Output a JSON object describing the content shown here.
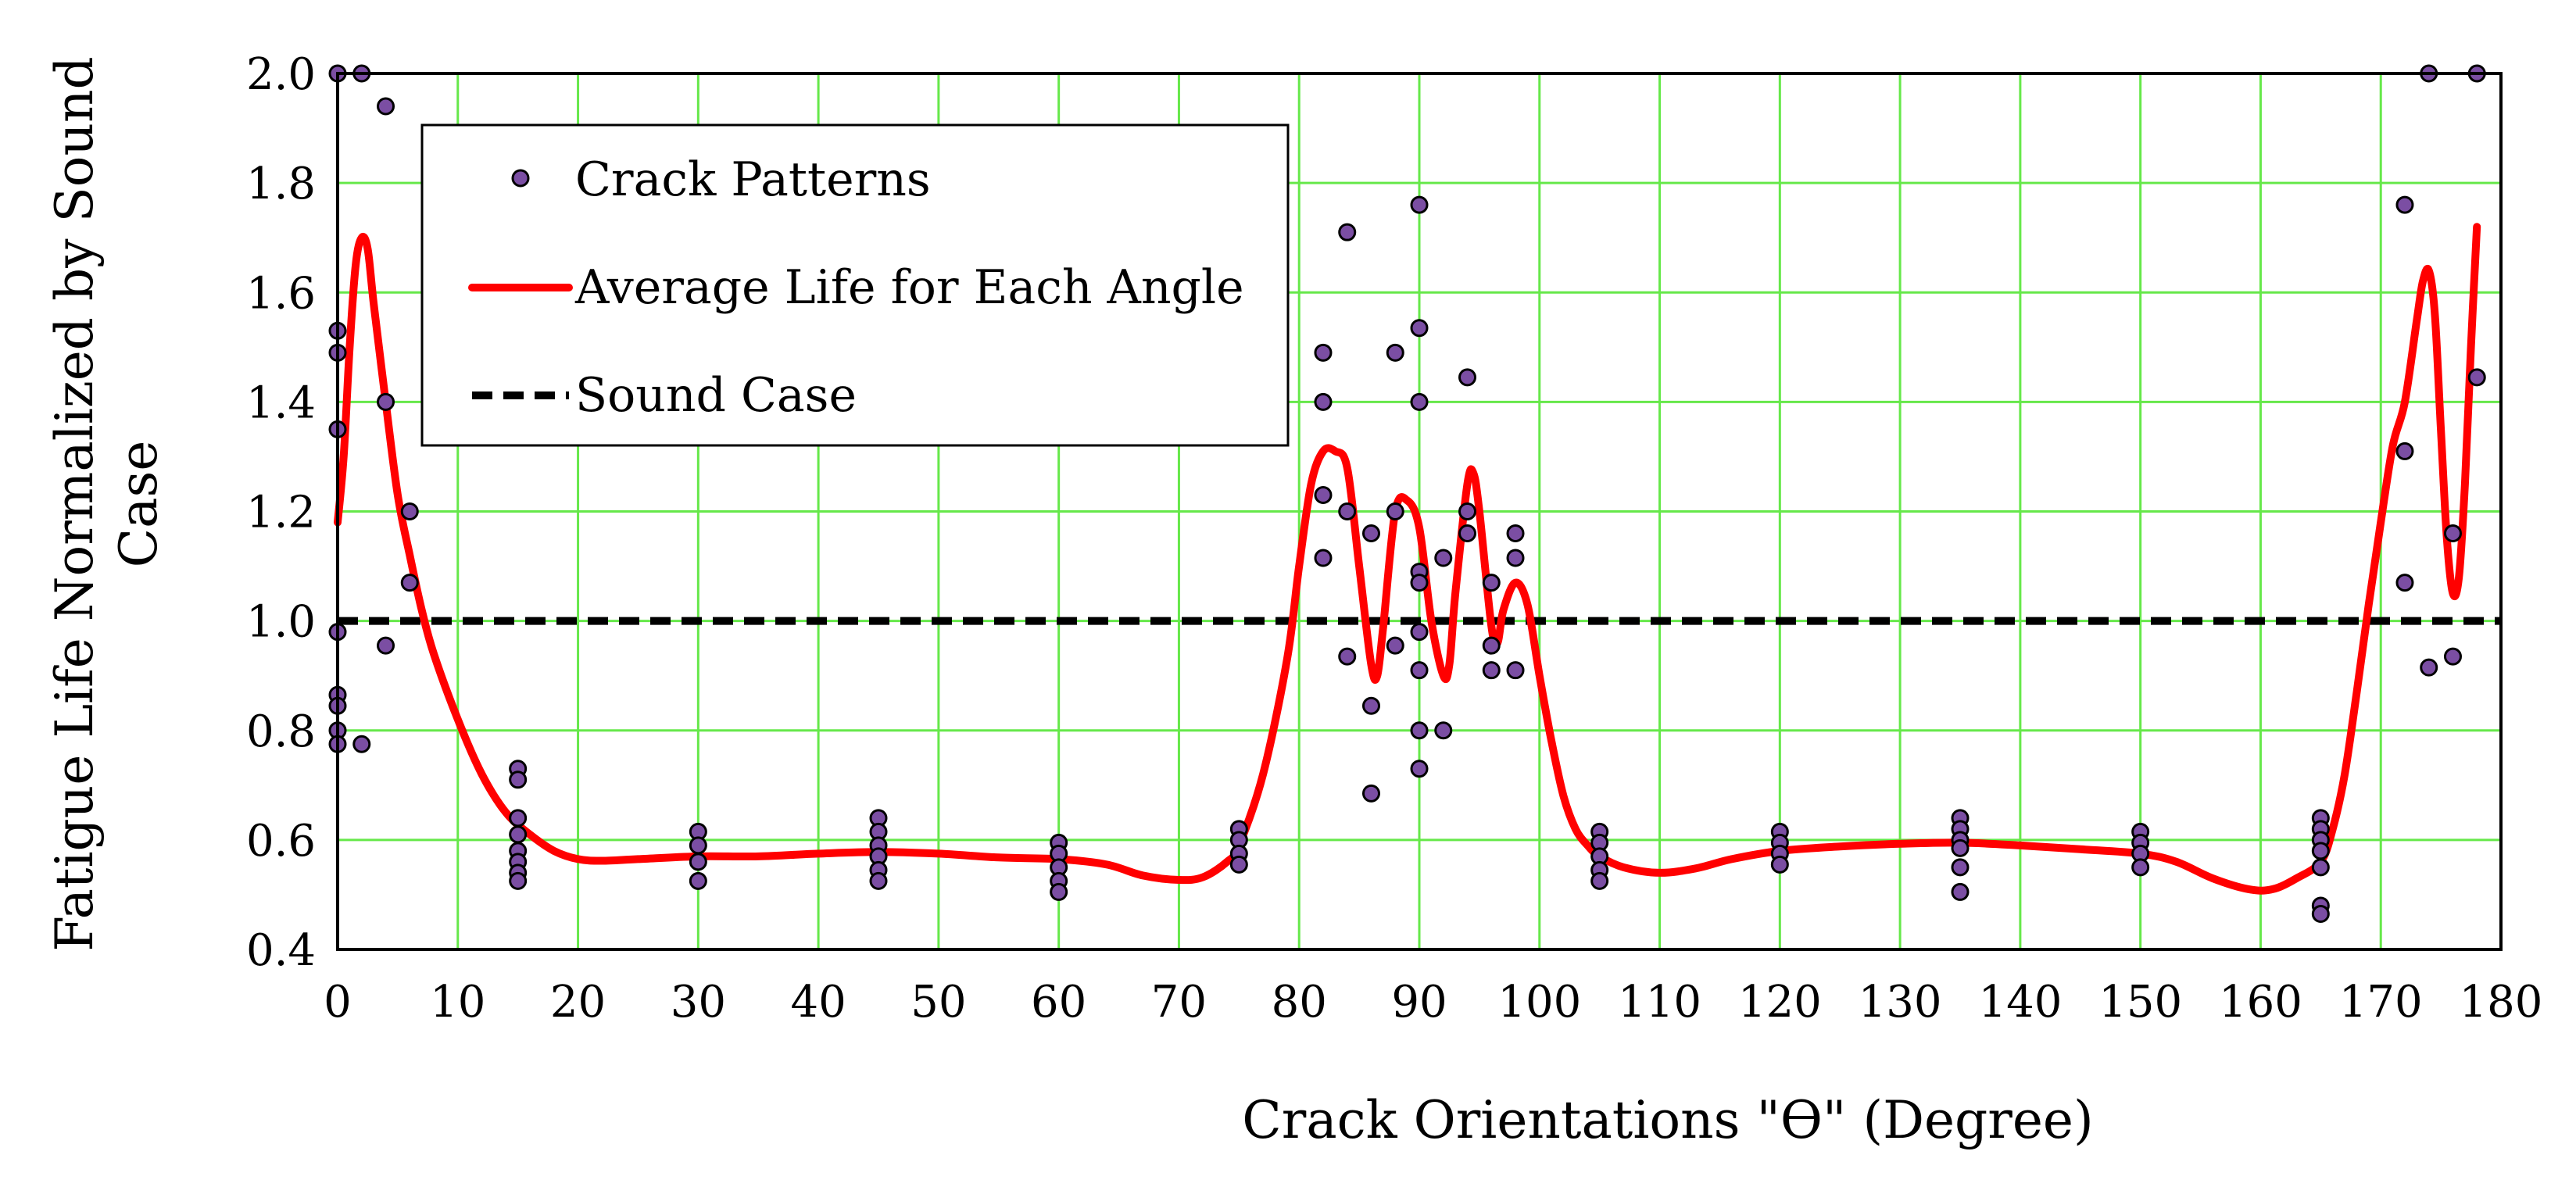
{
  "chart_data": {
    "type": "scatter",
    "title": "",
    "xlabel": "Crack Orientations \"ϴ\" (Degree)",
    "ylabel_line1": "Fatigue Life Normalized by Sound",
    "ylabel_line2": "Case",
    "xlim": [
      0,
      180
    ],
    "ylim": [
      0.4,
      2.0
    ],
    "x_ticks": [
      0,
      10,
      20,
      30,
      40,
      50,
      60,
      70,
      80,
      90,
      100,
      110,
      120,
      130,
      140,
      150,
      160,
      170,
      180
    ],
    "x_tick_labels": [
      "0",
      "10",
      "20",
      "30",
      "40",
      "50",
      "60",
      "70",
      "80",
      "90",
      "100",
      "110",
      "120",
      "130",
      "140",
      "150",
      "160",
      "170",
      "180"
    ],
    "y_ticks": [
      0.4,
      0.6,
      0.8,
      1.0,
      1.2,
      1.4,
      1.6,
      1.8,
      2.0
    ],
    "y_tick_labels": [
      "0.4",
      "0.6",
      "0.8",
      "1.0",
      "1.2",
      "1.4",
      "1.6",
      "1.8",
      "2.0"
    ],
    "grid": true,
    "legend_position": "top-left",
    "colors": {
      "grid": "#66e84a",
      "points_fill": "#7b4ea3",
      "points_edge": "#000000",
      "average_line": "#ff0000",
      "sound_line": "#000000",
      "axes": "#000000"
    },
    "legend": [
      {
        "label": "Crack Patterns",
        "kind": "marker"
      },
      {
        "label": "Average Life for Each Angle",
        "kind": "solid-line"
      },
      {
        "label": "Sound Case",
        "kind": "dashed-line"
      }
    ],
    "series": [
      {
        "name": "Crack Patterns",
        "kind": "scatter",
        "points": [
          [
            0,
            2.0
          ],
          [
            0,
            1.53
          ],
          [
            0,
            1.49
          ],
          [
            0,
            1.35
          ],
          [
            0,
            0.98
          ],
          [
            0,
            0.865
          ],
          [
            0,
            0.845
          ],
          [
            0,
            0.8
          ],
          [
            0,
            0.775
          ],
          [
            2,
            2.0
          ],
          [
            2,
            0.775
          ],
          [
            4,
            1.94
          ],
          [
            4,
            1.4
          ],
          [
            4,
            0.955
          ],
          [
            6,
            1.2
          ],
          [
            6,
            1.07
          ],
          [
            15,
            0.73
          ],
          [
            15,
            0.71
          ],
          [
            15,
            0.64
          ],
          [
            15,
            0.61
          ],
          [
            15,
            0.58
          ],
          [
            15,
            0.56
          ],
          [
            15,
            0.54
          ],
          [
            15,
            0.525
          ],
          [
            30,
            0.615
          ],
          [
            30,
            0.59
          ],
          [
            30,
            0.56
          ],
          [
            30,
            0.525
          ],
          [
            45,
            0.64
          ],
          [
            45,
            0.615
          ],
          [
            45,
            0.59
          ],
          [
            45,
            0.57
          ],
          [
            45,
            0.545
          ],
          [
            45,
            0.525
          ],
          [
            60,
            0.595
          ],
          [
            60,
            0.575
          ],
          [
            60,
            0.55
          ],
          [
            60,
            0.525
          ],
          [
            60,
            0.505
          ],
          [
            75,
            0.62
          ],
          [
            75,
            0.6
          ],
          [
            75,
            0.575
          ],
          [
            75,
            0.555
          ],
          [
            82,
            1.49
          ],
          [
            82,
            1.4
          ],
          [
            82,
            1.23
          ],
          [
            82,
            1.115
          ],
          [
            84,
            1.71
          ],
          [
            84,
            1.2
          ],
          [
            84,
            0.935
          ],
          [
            86,
            1.16
          ],
          [
            86,
            0.845
          ],
          [
            86,
            0.685
          ],
          [
            88,
            1.49
          ],
          [
            88,
            1.2
          ],
          [
            88,
            0.955
          ],
          [
            90,
            1.76
          ],
          [
            90,
            1.535
          ],
          [
            90,
            1.4
          ],
          [
            90,
            1.09
          ],
          [
            90,
            1.07
          ],
          [
            90,
            0.98
          ],
          [
            90,
            0.91
          ],
          [
            90,
            0.8
          ],
          [
            90,
            0.73
          ],
          [
            92,
            1.115
          ],
          [
            92,
            0.8
          ],
          [
            94,
            1.445
          ],
          [
            94,
            1.2
          ],
          [
            94,
            1.16
          ],
          [
            96,
            1.07
          ],
          [
            96,
            0.955
          ],
          [
            96,
            0.91
          ],
          [
            98,
            1.16
          ],
          [
            98,
            1.115
          ],
          [
            98,
            0.91
          ],
          [
            105,
            0.615
          ],
          [
            105,
            0.595
          ],
          [
            105,
            0.57
          ],
          [
            105,
            0.545
          ],
          [
            105,
            0.525
          ],
          [
            120,
            0.615
          ],
          [
            120,
            0.595
          ],
          [
            120,
            0.575
          ],
          [
            120,
            0.555
          ],
          [
            135,
            0.64
          ],
          [
            135,
            0.62
          ],
          [
            135,
            0.6
          ],
          [
            135,
            0.585
          ],
          [
            135,
            0.55
          ],
          [
            135,
            0.505
          ],
          [
            150,
            0.615
          ],
          [
            150,
            0.595
          ],
          [
            150,
            0.575
          ],
          [
            150,
            0.55
          ],
          [
            165,
            0.64
          ],
          [
            165,
            0.62
          ],
          [
            165,
            0.6
          ],
          [
            165,
            0.58
          ],
          [
            165,
            0.55
          ],
          [
            165,
            0.48
          ],
          [
            165,
            0.465
          ],
          [
            172,
            1.76
          ],
          [
            172,
            1.31
          ],
          [
            172,
            1.07
          ],
          [
            174,
            2.0
          ],
          [
            174,
            0.915
          ],
          [
            176,
            1.16
          ],
          [
            176,
            0.935
          ],
          [
            178,
            2.0
          ],
          [
            178,
            1.445
          ]
        ]
      },
      {
        "name": "Average Life for Each Angle",
        "kind": "line",
        "points": [
          [
            0,
            1.18
          ],
          [
            0.5,
            1.3
          ],
          [
            1,
            1.5
          ],
          [
            1.5,
            1.65
          ],
          [
            2,
            1.7
          ],
          [
            2.5,
            1.68
          ],
          [
            3,
            1.58
          ],
          [
            4,
            1.4
          ],
          [
            5,
            1.23
          ],
          [
            6,
            1.12
          ],
          [
            7,
            1.02
          ],
          [
            8,
            0.94
          ],
          [
            10,
            0.82
          ],
          [
            12,
            0.72
          ],
          [
            14,
            0.65
          ],
          [
            16,
            0.61
          ],
          [
            18,
            0.58
          ],
          [
            20,
            0.565
          ],
          [
            22,
            0.562
          ],
          [
            25,
            0.565
          ],
          [
            30,
            0.57
          ],
          [
            35,
            0.57
          ],
          [
            40,
            0.575
          ],
          [
            45,
            0.578
          ],
          [
            50,
            0.575
          ],
          [
            55,
            0.568
          ],
          [
            60,
            0.565
          ],
          [
            64,
            0.555
          ],
          [
            67,
            0.535
          ],
          [
            70,
            0.527
          ],
          [
            72,
            0.532
          ],
          [
            74,
            0.56
          ],
          [
            75,
            0.59
          ],
          [
            77,
            0.72
          ],
          [
            79,
            0.93
          ],
          [
            80,
            1.1
          ],
          [
            81,
            1.25
          ],
          [
            82,
            1.31
          ],
          [
            83,
            1.31
          ],
          [
            84,
            1.28
          ],
          [
            85,
            1.1
          ],
          [
            86,
            0.92
          ],
          [
            86.5,
            0.9
          ],
          [
            87,
            0.99
          ],
          [
            88,
            1.2
          ],
          [
            89,
            1.22
          ],
          [
            90,
            1.17
          ],
          [
            91,
            1.0
          ],
          [
            92,
            0.9
          ],
          [
            92.5,
            0.92
          ],
          [
            93,
            1.05
          ],
          [
            94,
            1.25
          ],
          [
            94.5,
            1.27
          ],
          [
            95,
            1.2
          ],
          [
            96,
            0.99
          ],
          [
            96.5,
            0.96
          ],
          [
            97,
            1.02
          ],
          [
            98,
            1.07
          ],
          [
            99,
            1.03
          ],
          [
            100,
            0.9
          ],
          [
            101,
            0.78
          ],
          [
            102,
            0.68
          ],
          [
            103,
            0.62
          ],
          [
            104,
            0.59
          ],
          [
            105,
            0.57
          ],
          [
            107,
            0.55
          ],
          [
            110,
            0.54
          ],
          [
            113,
            0.548
          ],
          [
            116,
            0.565
          ],
          [
            120,
            0.58
          ],
          [
            125,
            0.588
          ],
          [
            130,
            0.593
          ],
          [
            135,
            0.595
          ],
          [
            140,
            0.59
          ],
          [
            145,
            0.583
          ],
          [
            150,
            0.575
          ],
          [
            153,
            0.56
          ],
          [
            156,
            0.53
          ],
          [
            159,
            0.51
          ],
          [
            161,
            0.51
          ],
          [
            163,
            0.53
          ],
          [
            165,
            0.56
          ],
          [
            166,
            0.62
          ],
          [
            167,
            0.72
          ],
          [
            168,
            0.87
          ],
          [
            169,
            1.03
          ],
          [
            170,
            1.18
          ],
          [
            171,
            1.32
          ],
          [
            172,
            1.4
          ],
          [
            173,
            1.55
          ],
          [
            173.5,
            1.62
          ],
          [
            174,
            1.64
          ],
          [
            174.5,
            1.56
          ],
          [
            175,
            1.35
          ],
          [
            175.5,
            1.15
          ],
          [
            176,
            1.05
          ],
          [
            176.5,
            1.08
          ],
          [
            177,
            1.25
          ],
          [
            177.5,
            1.5
          ],
          [
            178,
            1.72
          ]
        ]
      },
      {
        "name": "Sound Case",
        "kind": "line",
        "points": [
          [
            0,
            1.0
          ],
          [
            180,
            1.0
          ]
        ]
      }
    ]
  }
}
